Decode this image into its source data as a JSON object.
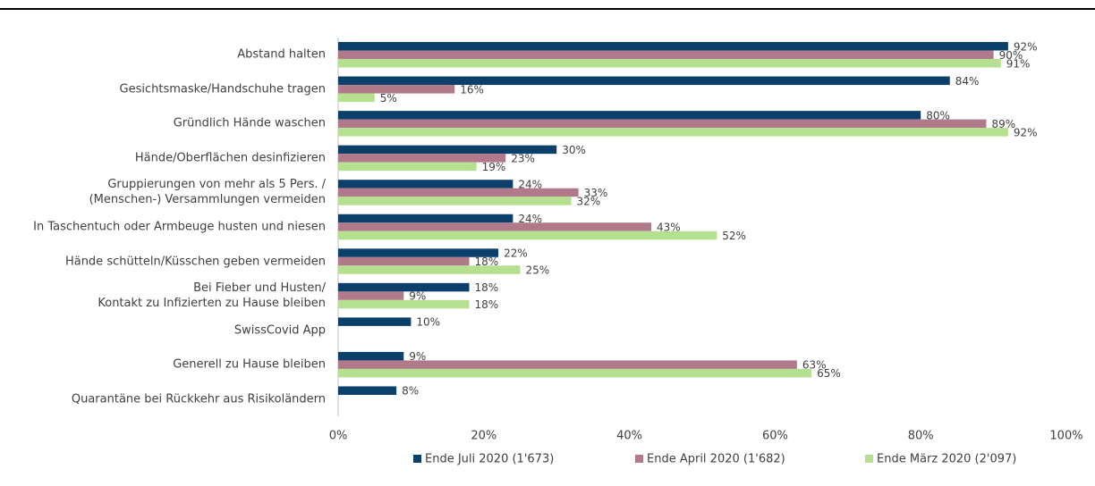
{
  "chart_data": {
    "type": "bar",
    "orientation": "horizontal",
    "categories": [
      "Abstand halten",
      "Gesichtsmaske/Handschuhe tragen",
      "Gründlich Hände waschen",
      "Hände/Oberflächen desinfizieren",
      "Gruppierungen von mehr als 5 Pers. /\n(Menschen-) Versammlungen vermeiden",
      "In Taschentuch oder Armbeuge husten und niesen",
      "Hände schütteln/Küsschen geben vermeiden",
      "Bei Fieber und Husten/\nKontakt zu Infizierten zu Hause bleiben",
      "SwissCovid App",
      "Generell zu Hause bleiben",
      "Quarantäne bei Rückkehr aus Risikoländern"
    ],
    "series": [
      {
        "name": "Ende Juli 2020 (1'673)",
        "color": "#0d3f6b",
        "values": [
          92,
          84,
          80,
          30,
          24,
          24,
          22,
          18,
          10,
          9,
          8
        ],
        "value_labels": [
          "92%",
          "84%",
          "80%",
          "30%",
          "24%",
          "24%",
          "22%",
          "18%",
          "10%",
          "9%",
          "8%"
        ]
      },
      {
        "name": "Ende April 2020 (1'682)",
        "color": "#b07a8a",
        "values": [
          90,
          16,
          89,
          23,
          33,
          43,
          18,
          9,
          null,
          63,
          null
        ],
        "value_labels": [
          "90%",
          "16%",
          "89%",
          "23%",
          "33%",
          "43%",
          "18%",
          "9%",
          null,
          "63%",
          null
        ]
      },
      {
        "name": "Ende März 2020 (2'097)",
        "color": "#b5e08f",
        "values": [
          91,
          5,
          92,
          19,
          32,
          52,
          25,
          18,
          null,
          65,
          null
        ],
        "value_labels": [
          "91%",
          "5%",
          "92%",
          "19%",
          "32%",
          "52%",
          "25%",
          "18%",
          null,
          "65%",
          null
        ]
      }
    ],
    "xlim": [
      0,
      100
    ],
    "xticks": [
      {
        "value": 0,
        "label": "0%"
      },
      {
        "value": 20,
        "label": "20%"
      },
      {
        "value": 40,
        "label": "40%"
      },
      {
        "value": 60,
        "label": "60%"
      },
      {
        "value": 80,
        "label": "80%"
      },
      {
        "value": 100,
        "label": "100%"
      }
    ],
    "legend": "bottom"
  }
}
